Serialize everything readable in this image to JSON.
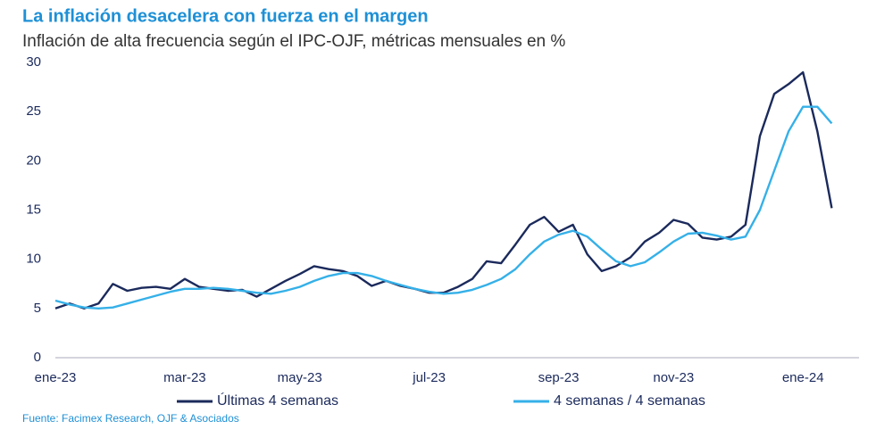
{
  "chart_data": {
    "type": "line",
    "title": "La inflación desacelera con fuerza en el margen",
    "subtitle": "Inflación de alta frecuencia según el IPC-OJF, métricas mensuales en %",
    "source": "Fuente: Facimex Research, OJF & Asociados",
    "categories": [
      "ene-23",
      null,
      null,
      null,
      null,
      null,
      null,
      null,
      null,
      "mar-23",
      null,
      null,
      null,
      null,
      null,
      null,
      null,
      "may-23",
      null,
      null,
      null,
      null,
      null,
      null,
      null,
      null,
      "jul-23",
      null,
      null,
      null,
      null,
      null,
      null,
      null,
      null,
      "sep-23",
      null,
      null,
      null,
      null,
      null,
      null,
      null,
      "nov-23",
      null,
      null,
      null,
      null,
      null,
      null,
      null,
      null,
      "ene-24",
      null,
      null
    ],
    "series": [
      {
        "name": "Últimas 4 semanas",
        "color": "#1b2a5c",
        "values": [
          5.0,
          5.5,
          5.0,
          5.5,
          7.5,
          6.8,
          7.1,
          7.2,
          7.0,
          8.0,
          7.2,
          7.0,
          6.8,
          6.9,
          6.2,
          7.0,
          7.8,
          8.5,
          9.3,
          9.0,
          8.8,
          8.3,
          7.3,
          7.8,
          7.3,
          7.0,
          6.6,
          6.6,
          7.2,
          8.0,
          9.8,
          9.6,
          11.5,
          13.5,
          14.3,
          12.8,
          13.5,
          10.5,
          8.8,
          9.3,
          10.2,
          11.8,
          12.7,
          14.0,
          13.6,
          12.2,
          12.0,
          12.3,
          13.5,
          22.5,
          26.8,
          27.8,
          29.0,
          23.0,
          15.2
        ]
      },
      {
        "name": "4 semanas / 4 semanas",
        "color": "#35b0e8",
        "values": [
          5.8,
          5.4,
          5.1,
          5.0,
          5.1,
          5.5,
          5.9,
          6.3,
          6.7,
          7.0,
          7.0,
          7.1,
          7.0,
          6.8,
          6.6,
          6.5,
          6.8,
          7.2,
          7.8,
          8.3,
          8.6,
          8.6,
          8.3,
          7.8,
          7.4,
          7.0,
          6.7,
          6.5,
          6.6,
          6.9,
          7.4,
          8.0,
          9.0,
          10.5,
          11.8,
          12.5,
          12.9,
          12.3,
          11.0,
          9.8,
          9.3,
          9.7,
          10.7,
          11.8,
          12.6,
          12.7,
          12.4,
          12.0,
          12.3,
          15.0,
          19.0,
          23.0,
          25.5,
          25.5,
          23.8
        ]
      }
    ],
    "ylim": [
      0,
      30
    ],
    "yticks": [
      0,
      5,
      10,
      15,
      20,
      25,
      30
    ],
    "grid": false,
    "legend": "bottom"
  }
}
